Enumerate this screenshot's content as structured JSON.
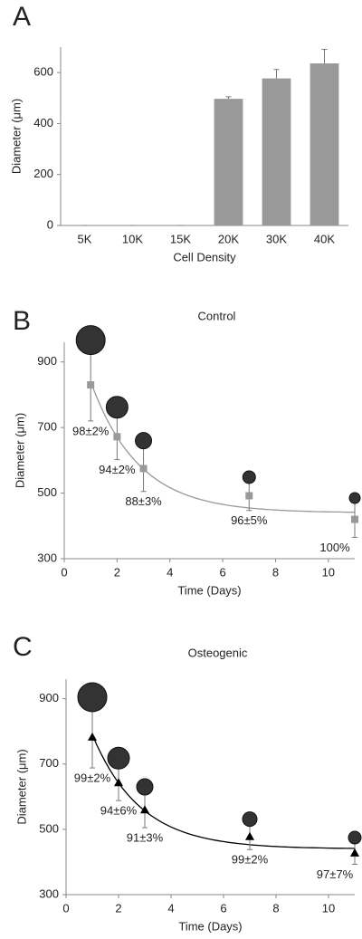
{
  "chart_data": [
    {
      "type": "bar",
      "panel": "A",
      "xlabel": "Cell Density",
      "ylabel": "Diameter (μm)",
      "categories": [
        "5K",
        "10K",
        "15K",
        "20K",
        "30K",
        "40K"
      ],
      "values": [
        0,
        0,
        0,
        497,
        577,
        636
      ],
      "errors": [
        0,
        0,
        0,
        8,
        35,
        55
      ],
      "color": "#999999",
      "ylim": [
        0,
        700
      ],
      "yticks": [
        0,
        200,
        400,
        600
      ]
    },
    {
      "type": "scatter",
      "panel": "B",
      "title": "Control",
      "xlabel": "Time  (Days)",
      "ylabel": "Diameter (μm)",
      "x": [
        1,
        2,
        3,
        7,
        11
      ],
      "values": [
        830,
        672,
        575,
        492,
        420
      ],
      "errors": [
        110,
        70,
        70,
        45,
        55
      ],
      "annotations": [
        "98±2%",
        "94±2%",
        "88±3%",
        "96±5%",
        "100%"
      ],
      "marker": "square",
      "color": "#999999",
      "xlim": [
        0,
        11
      ],
      "xticks": [
        0,
        2,
        4,
        6,
        8,
        10
      ],
      "ylim": [
        300,
        960
      ],
      "yticks": [
        300,
        500,
        700,
        900
      ]
    },
    {
      "type": "scatter",
      "panel": "C",
      "title": "Osteogenic",
      "xlabel": "Time  (Days)",
      "ylabel": "Diameter (μm)",
      "x": [
        1,
        2,
        3,
        7,
        11
      ],
      "values": [
        783,
        643,
        560,
        478,
        428
      ],
      "errors": [
        95,
        55,
        55,
        40,
        35
      ],
      "annotations": [
        "99±2%",
        "94±6%",
        "91±3%",
        "99±2%",
        "97±7%"
      ],
      "marker": "triangle",
      "color": "#000000",
      "xlim": [
        0,
        11
      ],
      "xticks": [
        0,
        2,
        4,
        6,
        8,
        10
      ],
      "ylim": [
        300,
        960
      ],
      "yticks": [
        300,
        500,
        700,
        900
      ]
    }
  ]
}
